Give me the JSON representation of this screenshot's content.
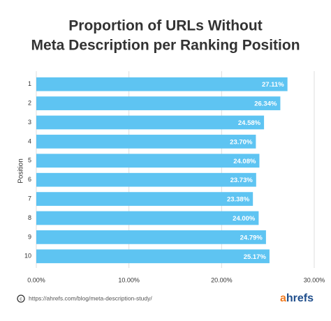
{
  "chart_data": {
    "type": "barh",
    "title": [
      "Proportion of URLs Without",
      "Meta Description per Ranking Position"
    ],
    "ylabel": "Position",
    "categories": [
      "1",
      "2",
      "3",
      "4",
      "5",
      "6",
      "7",
      "8",
      "9",
      "10"
    ],
    "values": [
      27.11,
      26.34,
      24.58,
      23.7,
      24.08,
      23.73,
      23.38,
      24.0,
      24.79,
      25.17
    ],
    "value_labels": [
      "27.11%",
      "26.34%",
      "24.58%",
      "23.70%",
      "24.08%",
      "23.73%",
      "23.38%",
      "24.00%",
      "24.79%",
      "25.17%"
    ],
    "color": "#5ec4f2",
    "xlim": [
      0,
      30
    ],
    "xticks": [
      {
        "value": 0,
        "label": "0.00%"
      },
      {
        "value": 10,
        "label": "10.00%"
      },
      {
        "value": 20,
        "label": "20.00%"
      },
      {
        "value": 30,
        "label": "30.00%"
      }
    ],
    "grid": true
  },
  "footer": {
    "source": "https://ahrefs.com/blog/meta-description-study/",
    "brand": [
      "a",
      "hrefs"
    ]
  }
}
